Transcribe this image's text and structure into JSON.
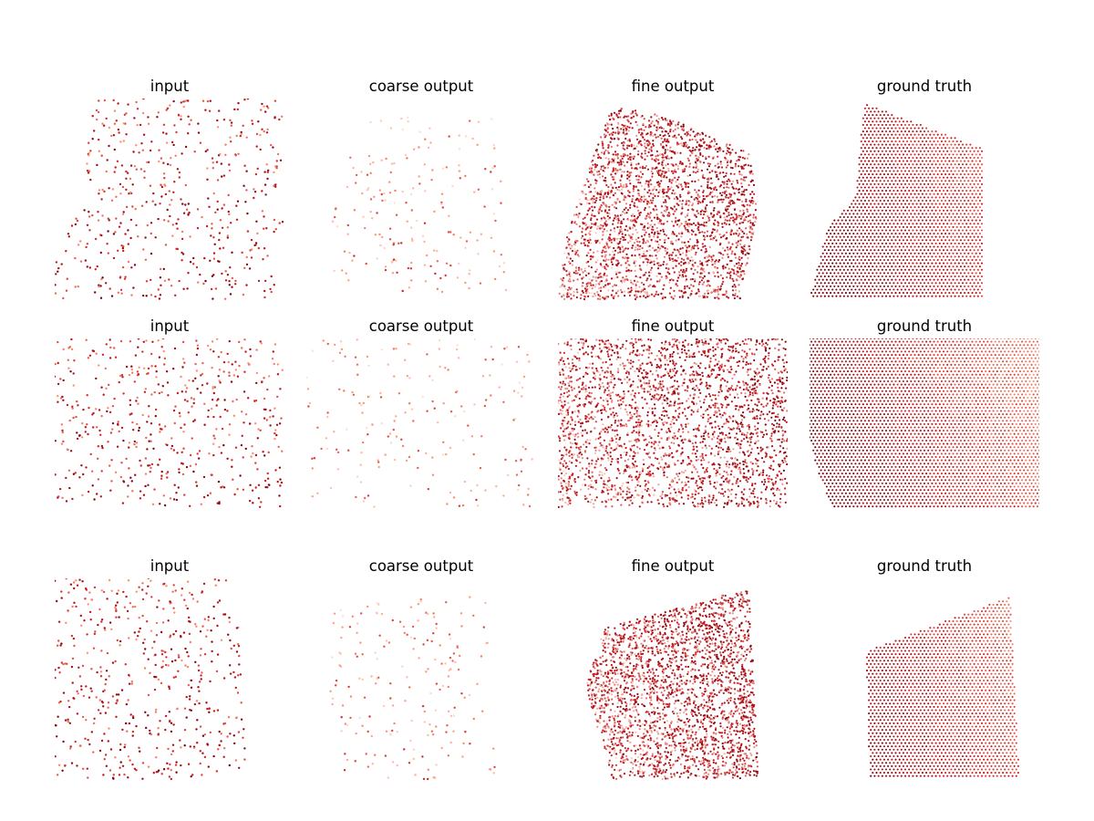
{
  "figure": {
    "rows": [
      {
        "panels": [
          {
            "title": "input",
            "cloud": "sparse-uniform",
            "density": "low",
            "shade": "dark-red",
            "seed": 11
          },
          {
            "title": "coarse output",
            "cloud": "sparse-uniform",
            "density": "very-low",
            "shade": "red",
            "seed": 12
          },
          {
            "title": "fine output",
            "cloud": "dense-scatter",
            "density": "high",
            "shade": "red-to-light",
            "seed": 13
          },
          {
            "title": "ground truth",
            "cloud": "dense-grid",
            "density": "high",
            "shade": "red-orange",
            "seed": 14
          }
        ]
      },
      {
        "panels": [
          {
            "title": "input",
            "cloud": "sparse-uniform",
            "density": "low",
            "shade": "dark-red",
            "seed": 21
          },
          {
            "title": "coarse output",
            "cloud": "sparse-uniform",
            "density": "very-low",
            "shade": "red",
            "seed": 22
          },
          {
            "title": "fine output",
            "cloud": "dense-scatter",
            "density": "high",
            "shade": "red-to-light",
            "seed": 23
          },
          {
            "title": "ground truth",
            "cloud": "dense-grid",
            "density": "high",
            "shade": "red-orange",
            "seed": 24
          }
        ]
      },
      {
        "panels": [
          {
            "title": "input",
            "cloud": "sparse-uniform",
            "density": "low",
            "shade": "dark-red",
            "seed": 31
          },
          {
            "title": "coarse output",
            "cloud": "sparse-uniform",
            "density": "very-low",
            "shade": "red",
            "seed": 32
          },
          {
            "title": "fine output",
            "cloud": "dense-scatter",
            "density": "high",
            "shade": "red-to-light",
            "seed": 33
          },
          {
            "title": "ground truth",
            "cloud": "dense-grid",
            "density": "high",
            "shade": "red-orange",
            "seed": 34
          }
        ]
      }
    ],
    "colors": {
      "dark": "#67000d",
      "mid": "#cb181d",
      "light": "#fc9272",
      "pale": "#fee0d2"
    }
  }
}
